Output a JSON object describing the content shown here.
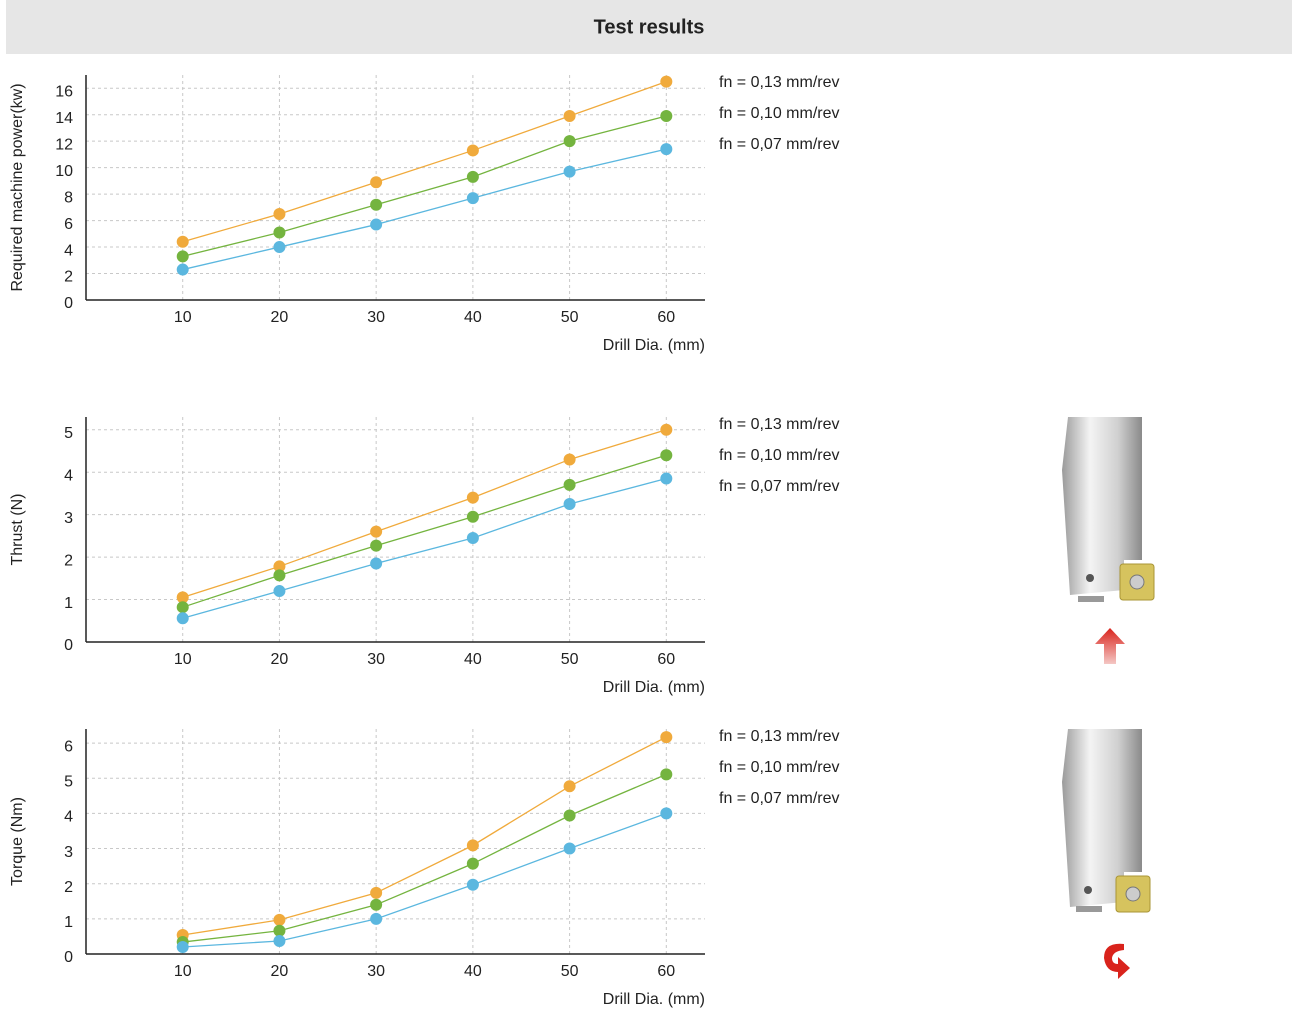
{
  "title": "Test results",
  "chart_data": [
    {
      "type": "line",
      "y_label": "Required machine power(kw)",
      "x_label": "Drill Dia. (mm)",
      "x": [
        10,
        20,
        30,
        40,
        50,
        60
      ],
      "xlim": [
        0,
        64
      ],
      "xticks": [
        10,
        20,
        30,
        40,
        50,
        60
      ],
      "ylim": [
        0,
        17
      ],
      "yticks": [
        0,
        2,
        4,
        6,
        8,
        10,
        12,
        14,
        16
      ],
      "grid": true,
      "series": [
        {
          "name": "fn = 0,13 mm/rev",
          "color": "#f0aa3c",
          "values": [
            4.4,
            6.5,
            8.9,
            11.3,
            13.9,
            16.5
          ]
        },
        {
          "name": "fn = 0,10 mm/rev",
          "color": "#74b43f",
          "values": [
            3.3,
            5.1,
            7.2,
            9.3,
            12.0,
            13.9
          ]
        },
        {
          "name": "fn = 0,07 mm/rev",
          "color": "#5bb7df",
          "values": [
            2.3,
            4.0,
            5.7,
            7.7,
            9.7,
            11.4
          ]
        }
      ]
    },
    {
      "type": "line",
      "y_label": "Thrust (N)",
      "x_label": "Drill Dia. (mm)",
      "x": [
        10,
        20,
        30,
        40,
        50,
        60
      ],
      "xlim": [
        0,
        64
      ],
      "xticks": [
        10,
        20,
        30,
        40,
        50,
        60
      ],
      "ylim": [
        0,
        5.3
      ],
      "yticks": [
        0,
        1,
        2,
        3,
        4,
        5
      ],
      "grid": true,
      "series": [
        {
          "name": "fn = 0,13 mm/rev",
          "color": "#f0aa3c",
          "values": [
            1.05,
            1.78,
            2.6,
            3.4,
            4.3,
            5.0
          ]
        },
        {
          "name": "fn = 0,10 mm/rev",
          "color": "#74b43f",
          "values": [
            0.82,
            1.57,
            2.27,
            2.95,
            3.7,
            4.4
          ]
        },
        {
          "name": "fn = 0,07 mm/rev",
          "color": "#5bb7df",
          "values": [
            0.56,
            1.2,
            1.85,
            2.45,
            3.25,
            3.85
          ]
        }
      ]
    },
    {
      "type": "line",
      "y_label": "Torque (Nm)",
      "x_label": "Drill Dia. (mm)",
      "x": [
        10,
        20,
        30,
        40,
        50,
        60
      ],
      "xlim": [
        0,
        64
      ],
      "xticks": [
        10,
        20,
        30,
        40,
        50,
        60
      ],
      "ylim": [
        0,
        6.4
      ],
      "yticks": [
        0,
        1,
        2,
        3,
        4,
        5,
        6
      ],
      "grid": true,
      "series": [
        {
          "name": "fn = 0,13 mm/rev",
          "color": "#f0aa3c",
          "values": [
            0.54,
            0.97,
            1.74,
            3.09,
            4.77,
            6.17
          ]
        },
        {
          "name": "fn = 0,10 mm/rev",
          "color": "#74b43f",
          "values": [
            0.34,
            0.66,
            1.4,
            2.57,
            3.94,
            5.11
          ]
        },
        {
          "name": "fn = 0,07 mm/rev",
          "color": "#5bb7df",
          "values": [
            0.2,
            0.37,
            1.0,
            1.97,
            3.0,
            4.0
          ]
        }
      ]
    }
  ]
}
